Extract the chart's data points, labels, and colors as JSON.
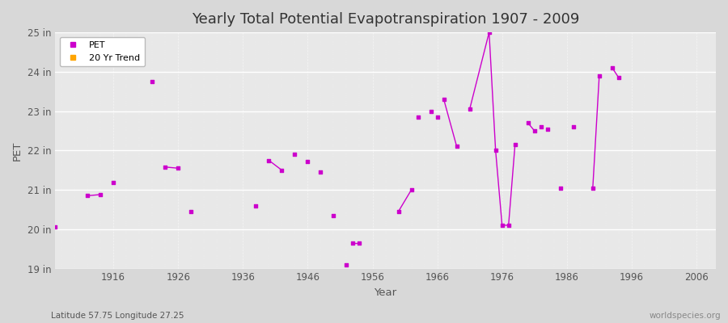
{
  "title": "Yearly Total Potential Evapotranspiration 1907 - 2009",
  "xlabel": "Year",
  "ylabel": "PET",
  "xlim": [
    1907,
    2009
  ],
  "ylim": [
    19,
    25
  ],
  "yticks": [
    19,
    20,
    21,
    22,
    23,
    24,
    25
  ],
  "ytick_labels": [
    "19 in",
    "20 in",
    "21 in",
    "22 in",
    "23 in",
    "24 in",
    "25 in"
  ],
  "xticks": [
    1916,
    1926,
    1936,
    1946,
    1956,
    1966,
    1976,
    1986,
    1996,
    2006
  ],
  "plot_bg_color": "#e8e8e8",
  "fig_bg_color": "#d8d8d8",
  "line_color": "#cc00cc",
  "trend_color": "#ffa500",
  "grid_color_h": "#ffffff",
  "grid_color_v": "#cccccc",
  "title_fontsize": 13,
  "subtitle": "Latitude 57.75 Longitude 27.25",
  "watermark": "worldspecies.org",
  "segments": [
    [
      [
        1907,
        20.05
      ]
    ],
    [
      [
        1912,
        20.85
      ],
      [
        1914,
        20.88
      ]
    ],
    [
      [
        1916,
        21.18
      ]
    ],
    [
      [
        1922,
        23.75
      ]
    ],
    [
      [
        1924,
        21.58
      ],
      [
        1926,
        21.55
      ]
    ],
    [
      [
        1928,
        20.45
      ]
    ],
    [
      [
        1938,
        20.6
      ]
    ],
    [
      [
        1940,
        21.75
      ],
      [
        1942,
        21.5
      ]
    ],
    [
      [
        1944,
        21.9
      ]
    ],
    [
      [
        1946,
        21.73
      ]
    ],
    [
      [
        1948,
        21.45
      ]
    ],
    [
      [
        1950,
        20.35
      ]
    ],
    [
      [
        1952,
        19.1
      ]
    ],
    [
      [
        1953,
        19.65
      ],
      [
        1954,
        19.65
      ]
    ],
    [
      [
        1960,
        20.45
      ],
      [
        1962,
        21.0
      ]
    ],
    [
      [
        1963,
        22.85
      ]
    ],
    [
      [
        1965,
        23.0
      ]
    ],
    [
      [
        1966,
        22.85
      ]
    ],
    [
      [
        1967,
        23.3
      ],
      [
        1969,
        22.1
      ]
    ],
    [
      [
        1971,
        23.05
      ],
      [
        1974,
        25.0
      ],
      [
        1975,
        22.0
      ],
      [
        1976,
        20.1
      ],
      [
        1977,
        20.1
      ],
      [
        1978,
        22.15
      ]
    ],
    [
      [
        1980,
        22.7
      ],
      [
        1981,
        22.5
      ]
    ],
    [
      [
        1982,
        22.6
      ]
    ],
    [
      [
        1983,
        22.55
      ]
    ],
    [
      [
        1985,
        21.05
      ]
    ],
    [
      [
        1987,
        22.6
      ]
    ],
    [
      [
        1990,
        21.05
      ],
      [
        1991,
        23.9
      ]
    ],
    [
      [
        1993,
        24.1
      ],
      [
        1994,
        23.85
      ]
    ]
  ]
}
